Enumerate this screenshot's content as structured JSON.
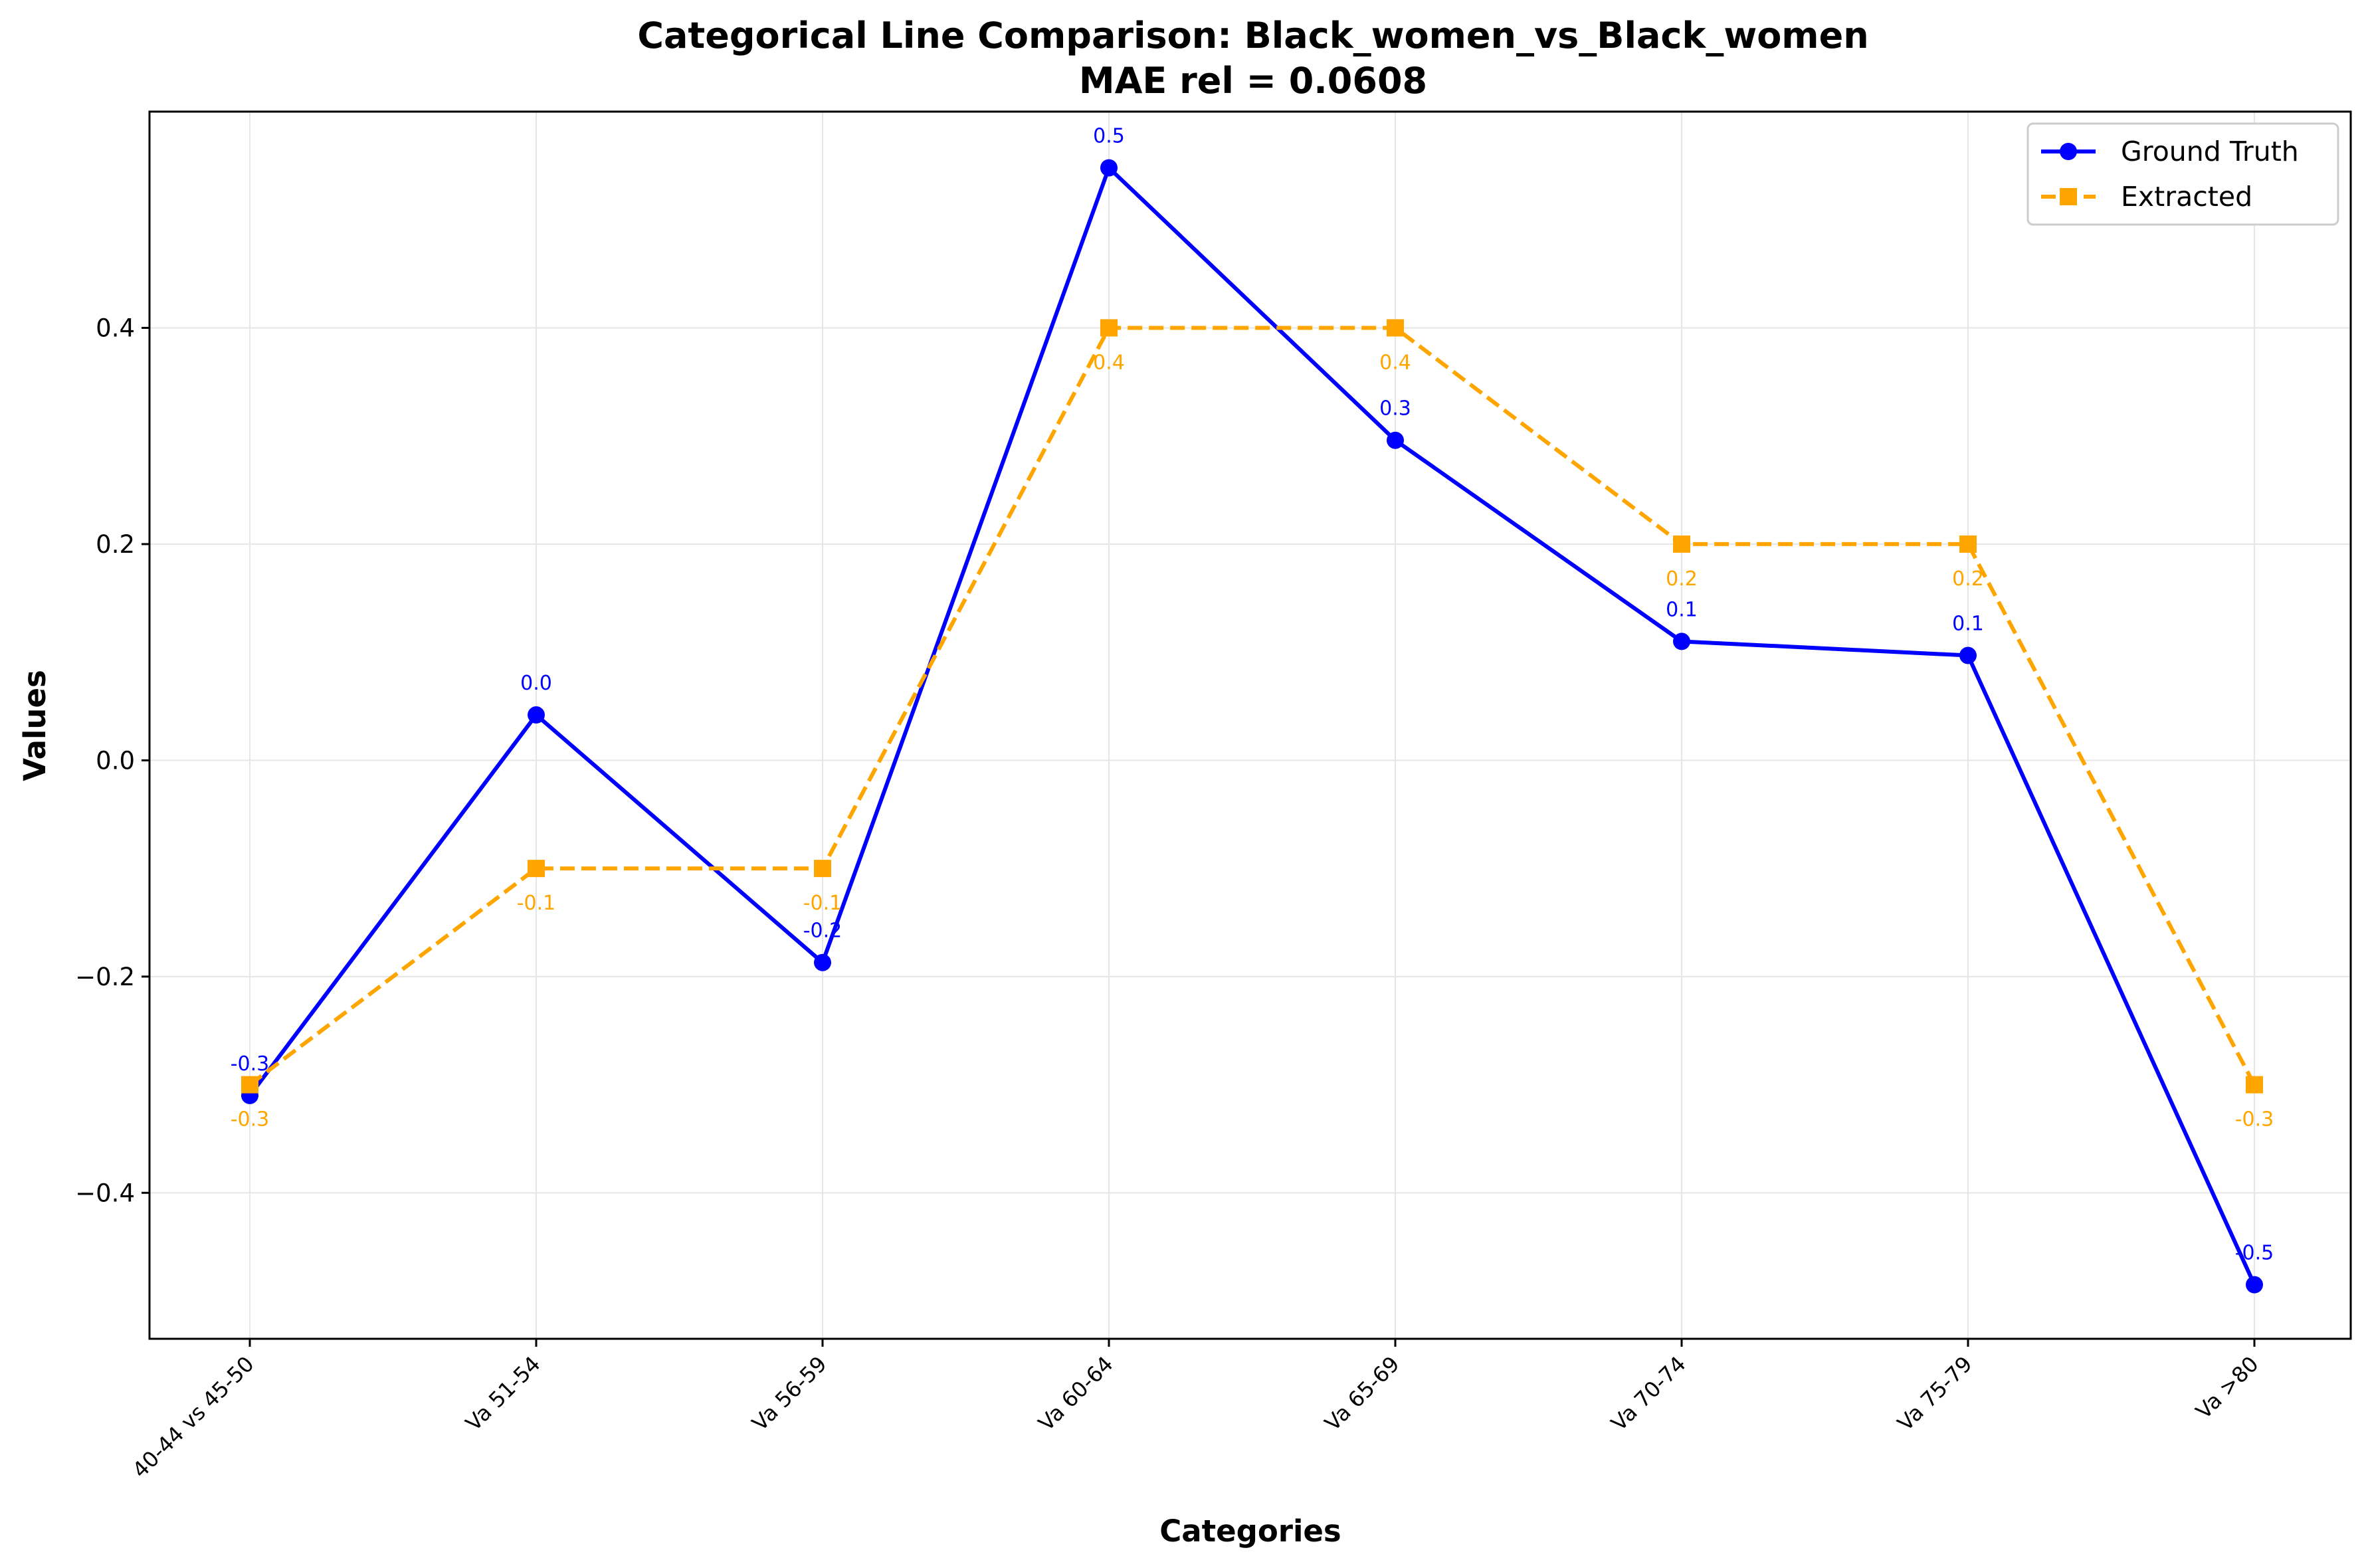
{
  "chart_data": {
    "type": "line",
    "title": "Categorical Line Comparison: Black_women_vs_Black_women",
    "subtitle": "MAE rel = 0.0608",
    "xlabel": "Categories",
    "ylabel": "Values",
    "categories": [
      "40-44 vs 45-50",
      "Va 51-54",
      "Va 56-59",
      "Va 60-64",
      "Va 65-69",
      "Va 70-74",
      "Va 75-79",
      "Va >80"
    ],
    "ylim": [
      -0.535,
      0.6
    ],
    "yticks": [
      -0.4,
      -0.2,
      0.0,
      0.2,
      0.4
    ],
    "ytick_labels": [
      "−0.4",
      "−0.2",
      "0.0",
      "0.2",
      "0.4"
    ],
    "grid": true,
    "legend_position": "top-right",
    "series": [
      {
        "name": "Ground Truth",
        "color": "#0000ff",
        "line_style": "solid",
        "marker": "circle",
        "values": [
          -0.31,
          0.042,
          -0.187,
          0.548,
          0.296,
          0.11,
          0.097,
          -0.485
        ],
        "labels": [
          "-0.3",
          "0.0",
          "-0.2",
          "0.5",
          "0.3",
          "0.1",
          "0.1",
          "-0.5"
        ]
      },
      {
        "name": "Extracted",
        "color": "#ffa500",
        "line_style": "dashed",
        "marker": "square",
        "values": [
          -0.3,
          -0.1,
          -0.1,
          0.4,
          0.4,
          0.2,
          0.2,
          -0.3
        ],
        "labels": [
          "-0.3",
          "-0.1",
          "-0.1",
          "0.4",
          "0.4",
          "0.2",
          "0.2",
          "-0.3"
        ]
      }
    ]
  }
}
